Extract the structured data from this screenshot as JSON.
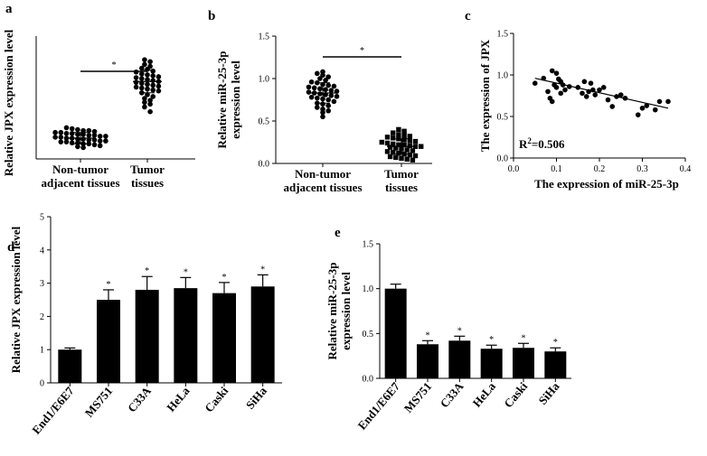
{
  "figure": {
    "panel_labels": [
      "a",
      "b",
      "c",
      "d",
      "e"
    ]
  },
  "chart_data": [
    {
      "panel": "a",
      "type": "scatter",
      "ylabel": "Relative JPX expression level",
      "categories": [
        "Non-tumor adjacent tissues",
        "Tumor tissues"
      ],
      "category_lines": [
        [
          "Non-tumor",
          "adjacent tissues"
        ],
        [
          "Tumor",
          "tissues"
        ]
      ],
      "marker": "circle",
      "groups": [
        {
          "category": "Non-tumor adjacent tissues",
          "values": [
            0.33,
            0.32,
            0.31,
            0.3,
            0.3,
            0.29,
            0.28,
            0.28,
            0.27,
            0.27,
            0.26,
            0.26,
            0.25,
            0.25,
            0.24,
            0.24,
            0.23,
            0.23,
            0.22,
            0.22,
            0.21,
            0.21,
            0.2,
            0.2,
            0.19,
            0.19,
            0.18,
            0.18,
            0.17,
            0.17,
            0.16,
            0.16,
            0.15,
            0.14,
            0.13,
            0.12
          ]
        },
        {
          "category": "Tumor tissues",
          "values": [
            1.05,
            1.03,
            1.0,
            0.98,
            0.96,
            0.95,
            0.93,
            0.92,
            0.9,
            0.89,
            0.88,
            0.87,
            0.86,
            0.85,
            0.84,
            0.83,
            0.82,
            0.81,
            0.8,
            0.79,
            0.78,
            0.77,
            0.76,
            0.75,
            0.74,
            0.73,
            0.72,
            0.7,
            0.68,
            0.66,
            0.64,
            0.62,
            0.6,
            0.58,
            0.55,
            0.5
          ]
        }
      ],
      "means": [
        0.22,
        0.82
      ],
      "sd": [
        0.06,
        0.12
      ],
      "significance": "*",
      "yticks": [],
      "ylim": [
        0,
        1.3
      ]
    },
    {
      "panel": "b",
      "type": "scatter",
      "ylabel": "Relative miR-25-3p expression level",
      "ylabel_lines": [
        "Relative miR-25-3p",
        "expression level"
      ],
      "categories": [
        "Non-tumor adjacent tissues",
        "Tumor tissues"
      ],
      "category_lines": [
        [
          "Non-tumor",
          "adjacent tissues"
        ],
        [
          "Tumor",
          "tissues"
        ]
      ],
      "marker_by_group": [
        "circle",
        "square"
      ],
      "groups": [
        {
          "category": "Non-tumor adjacent tissues",
          "values": [
            1.08,
            1.06,
            1.04,
            1.02,
            1.0,
            0.98,
            0.96,
            0.95,
            0.93,
            0.92,
            0.91,
            0.9,
            0.89,
            0.88,
            0.87,
            0.86,
            0.85,
            0.84,
            0.83,
            0.82,
            0.81,
            0.8,
            0.79,
            0.78,
            0.77,
            0.76,
            0.75,
            0.73,
            0.71,
            0.7,
            0.68,
            0.66,
            0.64,
            0.62,
            0.6,
            0.55
          ]
        },
        {
          "category": "Tumor tissues",
          "values": [
            0.4,
            0.38,
            0.36,
            0.34,
            0.33,
            0.32,
            0.31,
            0.3,
            0.29,
            0.28,
            0.27,
            0.26,
            0.25,
            0.24,
            0.23,
            0.22,
            0.22,
            0.21,
            0.2,
            0.2,
            0.19,
            0.18,
            0.17,
            0.16,
            0.15,
            0.14,
            0.13,
            0.12,
            0.11,
            0.1,
            0.09,
            0.08,
            0.07,
            0.06,
            0.05,
            0.04
          ]
        }
      ],
      "means": [
        0.83,
        0.2
      ],
      "sd": [
        0.12,
        0.09
      ],
      "significance": "*",
      "yticks": [
        "0.0",
        "0.5",
        "1.0",
        "1.5"
      ],
      "ylim": [
        0,
        1.5
      ]
    },
    {
      "panel": "c",
      "type": "scatter",
      "xlabel": "The expression of miR-25-3p",
      "ylabel": "The expression of JPX",
      "xticks": [
        "0.0",
        "0.1",
        "0.2",
        "0.3",
        "0.4"
      ],
      "yticks": [
        "0.0",
        "0.5",
        "1.0",
        "1.5"
      ],
      "xlim": [
        0,
        0.4
      ],
      "ylim": [
        0,
        1.5
      ],
      "annotation": {
        "base": "R",
        "sup": "2",
        "rest": "=0.506"
      },
      "points": [
        [
          0.05,
          0.9
        ],
        [
          0.07,
          0.96
        ],
        [
          0.08,
          0.8
        ],
        [
          0.085,
          0.72
        ],
        [
          0.09,
          0.68
        ],
        [
          0.09,
          1.05
        ],
        [
          0.095,
          0.88
        ],
        [
          0.1,
          1.02
        ],
        [
          0.1,
          0.85
        ],
        [
          0.105,
          0.95
        ],
        [
          0.11,
          0.78
        ],
        [
          0.11,
          0.92
        ],
        [
          0.115,
          0.88
        ],
        [
          0.12,
          0.82
        ],
        [
          0.13,
          0.86
        ],
        [
          0.15,
          0.85
        ],
        [
          0.16,
          0.78
        ],
        [
          0.165,
          0.92
        ],
        [
          0.17,
          0.74
        ],
        [
          0.175,
          0.8
        ],
        [
          0.18,
          0.9
        ],
        [
          0.185,
          0.82
        ],
        [
          0.19,
          0.76
        ],
        [
          0.2,
          0.82
        ],
        [
          0.21,
          0.85
        ],
        [
          0.22,
          0.7
        ],
        [
          0.23,
          0.62
        ],
        [
          0.24,
          0.74
        ],
        [
          0.25,
          0.76
        ],
        [
          0.26,
          0.72
        ],
        [
          0.29,
          0.52
        ],
        [
          0.3,
          0.6
        ],
        [
          0.31,
          0.63
        ],
        [
          0.33,
          0.58
        ],
        [
          0.34,
          0.68
        ],
        [
          0.36,
          0.68
        ]
      ],
      "fit_line": [
        [
          0.05,
          0.96
        ],
        [
          0.36,
          0.6
        ]
      ]
    },
    {
      "panel": "d",
      "type": "bar",
      "ylabel": "Relative JPX expression level",
      "categories": [
        "End1/E6E7",
        "MS751",
        "C33A",
        "HeLa",
        "Caski",
        "SiHa"
      ],
      "values": [
        1.0,
        2.5,
        2.8,
        2.85,
        2.7,
        2.9
      ],
      "errors": [
        0.05,
        0.3,
        0.4,
        0.32,
        0.32,
        0.35
      ],
      "significance": [
        "",
        "*",
        "*",
        "*",
        "*",
        "*"
      ],
      "yticks": [
        "0",
        "1",
        "2",
        "3",
        "4",
        "5"
      ],
      "ylim": [
        0,
        5
      ]
    },
    {
      "panel": "e",
      "type": "bar",
      "ylabel": "Relative miR-25-3p expression level",
      "ylabel_lines": [
        "Relative miR-25-3p",
        "expression level"
      ],
      "categories": [
        "End1/E6E7",
        "MS751",
        "C33A",
        "HeLa",
        "Caski",
        "SiHa"
      ],
      "values": [
        1.0,
        0.38,
        0.42,
        0.33,
        0.34,
        0.3
      ],
      "errors": [
        0.05,
        0.04,
        0.05,
        0.04,
        0.05,
        0.04
      ],
      "significance": [
        "",
        "*",
        "*",
        "*",
        "*",
        "*"
      ],
      "yticks": [
        "0.0",
        "0.5",
        "1.0",
        "1.5"
      ],
      "ylim": [
        0,
        1.5
      ]
    }
  ]
}
